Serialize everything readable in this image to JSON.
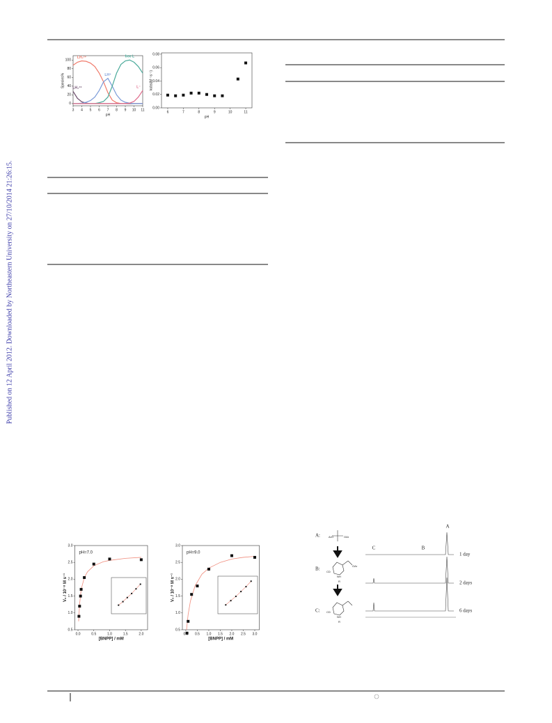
{
  "margin_note": "Published on 12 April 2012. Downloaded by Northeastern University on 27/10/2014 21:26:15.",
  "figures": [
    {
      "type": "line",
      "xlabel": "pH",
      "ylabel": "Species%",
      "xlim": [
        3,
        11
      ],
      "ylim": [
        -5,
        110
      ],
      "xticks": [
        3,
        4,
        5,
        6,
        7,
        8,
        9,
        10,
        11
      ],
      "yticks": [
        0,
        20,
        40,
        60,
        80,
        100
      ],
      "x": [
        3,
        3.5,
        4,
        4.5,
        5,
        5.5,
        6,
        6.5,
        7,
        7.5,
        8,
        8.5,
        9,
        9.5,
        10,
        10.5,
        11
      ],
      "series": [
        {
          "name": "LH₂²⁺",
          "color": "#f07a6a",
          "values": [
            88,
            95,
            98,
            97,
            93,
            85,
            70,
            50,
            25,
            8,
            2,
            0,
            0,
            0,
            0,
            0,
            0
          ]
        },
        {
          "name": "LH₃³⁺",
          "color": "#6a4a6a",
          "values": [
            28,
            12,
            4,
            1,
            0,
            0,
            0,
            0,
            0,
            0,
            0,
            0,
            0,
            0,
            0,
            0,
            0
          ]
        },
        {
          "name": "LH⁺",
          "color": "#7a9ad8",
          "values": [
            0,
            0,
            1,
            3,
            7,
            15,
            30,
            50,
            58,
            40,
            20,
            8,
            3,
            1,
            0,
            0,
            0
          ]
        },
        {
          "name": "free L",
          "color": "#4aaa9a",
          "values": [
            0,
            0,
            0,
            0,
            0,
            0,
            2,
            5,
            15,
            40,
            70,
            90,
            98,
            100,
            95,
            85,
            70
          ]
        },
        {
          "name": "L⁻",
          "color": "#e06a8a",
          "values": [
            0,
            0,
            0,
            0,
            0,
            0,
            0,
            0,
            0,
            0,
            0,
            0,
            0,
            1,
            5,
            15,
            30
          ]
        }
      ]
    },
    {
      "type": "scatter",
      "xlabel": "pH",
      "ylabel": "kobs(M⁻¹s⁻¹)",
      "xlim": [
        5.6,
        11.4
      ],
      "ylim": [
        0,
        0.082
      ],
      "xticks": [
        6,
        7,
        8,
        9,
        10,
        11
      ],
      "yticks": [
        {
          "value": 0,
          "label": "0.00"
        },
        {
          "value": 0.02,
          "label": "0.02"
        },
        {
          "value": 0.04,
          "label": "0.04"
        },
        {
          "value": 0.06,
          "label": "0.06"
        },
        {
          "value": 0.08,
          "label": "0.08"
        }
      ],
      "x": [
        6,
        6.5,
        7,
        7.5,
        8,
        8.5,
        9,
        9.5,
        10.5,
        11
      ],
      "series": [
        {
          "color": "#111111",
          "values": [
            0.019,
            0.018,
            0.019,
            0.022,
            0.022,
            0.02,
            0.018,
            0.018,
            0.043,
            0.067
          ]
        }
      ]
    },
    {
      "type": "scatter",
      "xlabel": "[BNPP] / mM",
      "ylabel": "V₀ / 10⁻⁸ M s⁻¹",
      "annotation": "pH=7.0",
      "xlim": [
        -0.1,
        2.2
      ],
      "ylim": [
        0.5,
        3.0
      ],
      "xticks": [
        {
          "value": 0,
          "label": "0.0"
        },
        {
          "value": 0.5,
          "label": "0.5"
        },
        {
          "value": 1,
          "label": "1.0"
        },
        {
          "value": 1.5,
          "label": "1.5"
        },
        {
          "value": 2,
          "label": "2.0"
        }
      ],
      "yticks": [
        {
          "value": 0.5,
          "label": "0.5"
        },
        {
          "value": 1,
          "label": "1.0"
        },
        {
          "value": 1.5,
          "label": "1.5"
        },
        {
          "value": 2,
          "label": "2.0"
        },
        {
          "value": 2.5,
          "label": "2.5"
        },
        {
          "value": 3,
          "label": "3.0"
        }
      ],
      "x": [
        0.03,
        0.05,
        0.08,
        0.1,
        0.2,
        0.5,
        1.0,
        2.0
      ],
      "series": [
        {
          "color": "#111111",
          "values": [
            0.9,
            1.2,
            1.5,
            1.7,
            2.05,
            2.45,
            2.6,
            2.58
          ]
        }
      ],
      "fit": {
        "color": "#f08a7a",
        "x": [
          0.02,
          0.05,
          0.1,
          0.2,
          0.3,
          0.5,
          0.8,
          1.0,
          1.5,
          2.0
        ],
        "values": [
          0.75,
          1.25,
          1.7,
          2.05,
          2.22,
          2.4,
          2.52,
          2.56,
          2.62,
          2.65
        ]
      },
      "inset": {
        "color": "#f08a7a",
        "x": [
          1,
          2,
          3,
          4,
          5,
          6
        ],
        "values": [
          1,
          1.6,
          2.3,
          3,
          3.8,
          4.6
        ]
      }
    },
    {
      "type": "scatter",
      "xlabel": "[BNPP] / mM",
      "ylabel": "V₀ / 10⁻⁸ M s⁻¹",
      "annotation": "pH=9.0",
      "xlim": [
        -0.15,
        3.2
      ],
      "ylim": [
        0.5,
        3.0
      ],
      "xticks": [
        {
          "value": 0,
          "label": "0.0"
        },
        {
          "value": 0.5,
          "label": "0.5"
        },
        {
          "value": 1,
          "label": "1.0"
        },
        {
          "value": 1.5,
          "label": "1.5"
        },
        {
          "value": 2,
          "label": "2.0"
        },
        {
          "value": 2.5,
          "label": "2.5"
        },
        {
          "value": 3,
          "label": "3.0"
        }
      ],
      "yticks": [
        {
          "value": 0.5,
          "label": "0.5"
        },
        {
          "value": 1,
          "label": "1.0"
        },
        {
          "value": 1.5,
          "label": "1.5"
        },
        {
          "value": 2,
          "label": "2.0"
        },
        {
          "value": 2.5,
          "label": "2.5"
        },
        {
          "value": 3,
          "label": "3.0"
        }
      ],
      "x": [
        0.05,
        0.1,
        0.25,
        0.5,
        1.0,
        2.0,
        3.0
      ],
      "series": [
        {
          "color": "#111111",
          "values": [
            0.4,
            0.75,
            1.55,
            1.8,
            2.3,
            2.7,
            2.65
          ]
        }
      ],
      "fit": {
        "color": "#f08a7a",
        "x": [
          0.03,
          0.1,
          0.2,
          0.4,
          0.7,
          1.0,
          1.5,
          2.0,
          2.5,
          3.0
        ],
        "values": [
          0.5,
          0.95,
          1.35,
          1.8,
          2.15,
          2.33,
          2.5,
          2.6,
          2.65,
          2.68
        ]
      },
      "inset": {
        "color": "#f08a7a",
        "x": [
          1,
          2,
          3,
          4,
          5,
          6
        ],
        "values": [
          1,
          1.7,
          2.4,
          3.2,
          4,
          4.9
        ]
      }
    }
  ],
  "nmr_figure": {
    "scheme_labels": [
      "A:",
      "B:",
      "C:"
    ],
    "peak_labels": [
      "C",
      "B",
      "A"
    ],
    "traces": [
      "1 day",
      "2 days",
      "6 days"
    ],
    "groups": [
      "ArO",
      "OAr",
      "CD",
      "NH",
      "R",
      "OAr",
      "CD",
      "NH",
      "R"
    ]
  }
}
